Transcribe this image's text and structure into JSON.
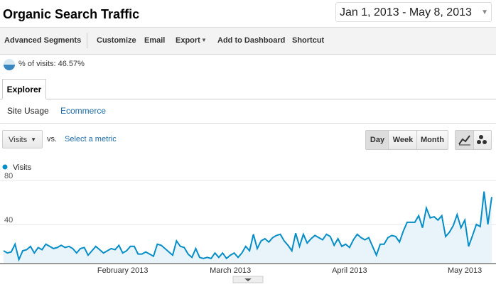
{
  "header": {
    "title": "Organic Search Traffic",
    "date_range": "Jan 1, 2013 - May 8, 2013"
  },
  "toolbar": [
    "Advanced Segments",
    "Customize",
    "Email",
    "Export",
    "Add to Dashboard",
    "Shortcut"
  ],
  "segment_label": "% of visits: 46.57%",
  "tabs": [
    "Explorer"
  ],
  "subtabs": [
    "Site Usage",
    "Ecommerce"
  ],
  "controls": {
    "metric": "Visits",
    "vs": "vs.",
    "select_metric": "Select a metric",
    "granularity": [
      "Day",
      "Week",
      "Month"
    ]
  },
  "chart_data": {
    "type": "line",
    "categories": [
      null,
      null,
      null,
      null,
      null,
      null,
      null,
      null,
      null,
      null,
      null,
      null,
      null,
      null,
      null,
      null,
      null,
      null,
      null,
      null,
      null,
      null,
      null,
      null,
      null,
      null,
      null,
      null,
      null,
      null,
      null,
      "February 2013",
      null,
      null,
      null,
      null,
      null,
      null,
      null,
      null,
      null,
      null,
      null,
      null,
      null,
      null,
      null,
      null,
      null,
      null,
      null,
      null,
      null,
      null,
      null,
      null,
      null,
      null,
      null,
      "March 2013",
      null,
      null,
      null,
      null,
      null,
      null,
      null,
      null,
      null,
      null,
      null,
      null,
      null,
      null,
      null,
      null,
      null,
      null,
      null,
      null,
      null,
      null,
      null,
      null,
      null,
      null,
      null,
      null,
      null,
      null,
      "April 2013",
      null,
      null,
      null,
      null,
      null,
      null,
      null,
      null,
      null,
      null,
      null,
      null,
      null,
      null,
      null,
      null,
      null,
      null,
      null,
      null,
      null,
      null,
      null,
      null,
      null,
      null,
      null,
      null,
      null,
      "May 2013",
      null,
      null,
      null,
      null,
      null,
      null,
      null
    ],
    "series": [
      {
        "name": "Visits",
        "color": "#058dc7",
        "values": [
          16,
          14,
          15,
          22,
          8,
          16,
          17,
          20,
          14,
          19,
          17,
          22,
          20,
          18,
          19,
          21,
          19,
          20,
          18,
          14,
          18,
          19,
          12,
          16,
          20,
          17,
          14,
          16,
          18,
          17,
          21,
          14,
          16,
          20,
          20,
          13,
          13,
          15,
          13,
          11,
          22,
          21,
          18,
          15,
          12,
          25,
          20,
          19,
          13,
          10,
          18,
          10,
          9,
          10,
          9,
          14,
          10,
          14,
          9,
          12,
          14,
          10,
          14,
          20,
          16,
          31,
          18,
          25,
          27,
          24,
          28,
          30,
          31,
          25,
          21,
          16,
          32,
          20,
          31,
          23,
          27,
          30,
          28,
          26,
          31,
          29,
          21,
          27,
          20,
          22,
          19,
          26,
          31,
          28,
          26,
          28,
          20,
          12,
          22,
          22,
          28,
          30,
          29,
          24,
          34,
          42,
          42,
          42,
          48,
          37,
          55,
          46,
          47,
          44,
          48,
          29,
          33,
          39,
          49,
          37,
          44,
          20,
          30,
          40,
          38,
          70,
          40,
          65
        ]
      }
    ],
    "ylim": [
      5,
      84
    ],
    "yticks": [
      40,
      80
    ],
    "grid": true
  }
}
